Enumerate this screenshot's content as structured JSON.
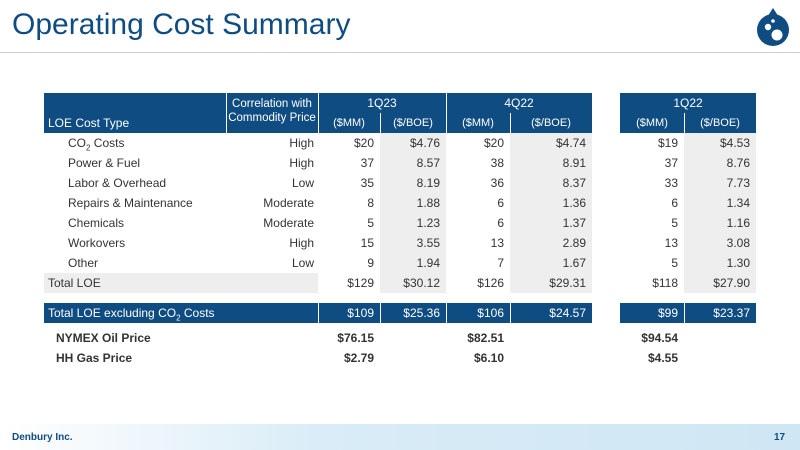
{
  "header": {
    "title": "Operating Cost Summary",
    "logo_icon": "water-drop-logo-icon"
  },
  "footer": {
    "company": "Denbury Inc.",
    "page_number": "17"
  },
  "colors": {
    "navy": "#0f4c81",
    "shade": "#eeeeee"
  },
  "table": {
    "col_label": "LOE Cost Type",
    "col_corr_line1": "Correlation with",
    "col_corr_line2": "Commodity Price",
    "periods": [
      "1Q23",
      "4Q22",
      "1Q22"
    ],
    "sub_headers": [
      "($MM)",
      "($/BOE)",
      "($MM)",
      "($/BOE)",
      "($MM)",
      "($/BOE)"
    ],
    "rows": [
      {
        "label_main": "CO",
        "label_sub": "2",
        "label_tail": " Costs",
        "corr": "High",
        "v": [
          "$20",
          "$4.76",
          "$20",
          "$4.74",
          "$19",
          "$4.53"
        ]
      },
      {
        "label_main": "Power & Fuel",
        "label_sub": "",
        "label_tail": "",
        "corr": "High",
        "v": [
          "37",
          "8.57",
          "38",
          "8.91",
          "37",
          "8.76"
        ]
      },
      {
        "label_main": "Labor & Overhead",
        "label_sub": "",
        "label_tail": "",
        "corr": "Low",
        "v": [
          "35",
          "8.19",
          "36",
          "8.37",
          "33",
          "7.73"
        ]
      },
      {
        "label_main": "Repairs & Maintenance",
        "label_sub": "",
        "label_tail": "",
        "corr": "Moderate",
        "v": [
          "8",
          "1.88",
          "6",
          "1.36",
          "6",
          "1.34"
        ]
      },
      {
        "label_main": "Chemicals",
        "label_sub": "",
        "label_tail": "",
        "corr": "Moderate",
        "v": [
          "5",
          "1.23",
          "6",
          "1.37",
          "5",
          "1.16"
        ]
      },
      {
        "label_main": "Workovers",
        "label_sub": "",
        "label_tail": "",
        "corr": "High",
        "v": [
          "15",
          "3.55",
          "13",
          "2.89",
          "13",
          "3.08"
        ]
      },
      {
        "label_main": "Other",
        "label_sub": "",
        "label_tail": "",
        "corr": "Low",
        "v": [
          "9",
          "1.94",
          "7",
          "1.67",
          "5",
          "1.30"
        ]
      }
    ],
    "total": {
      "label": "Total LOE",
      "v": [
        "$129",
        "$30.12",
        "$126",
        "$29.31",
        "$118",
        "$27.90"
      ]
    },
    "total_ex": {
      "label_main": "Total LOE excluding CO",
      "label_sub": "2",
      "label_tail": " Costs",
      "v": [
        "$109",
        "$25.36",
        "$106",
        "$24.57",
        "$99",
        "$23.37"
      ]
    },
    "prices": [
      {
        "label": "NYMEX Oil Price",
        "v": [
          "$76.15",
          "$82.51",
          "$94.54"
        ]
      },
      {
        "label": "HH Gas Price",
        "v": [
          "$2.79",
          "$6.10",
          "$4.55"
        ]
      }
    ]
  }
}
